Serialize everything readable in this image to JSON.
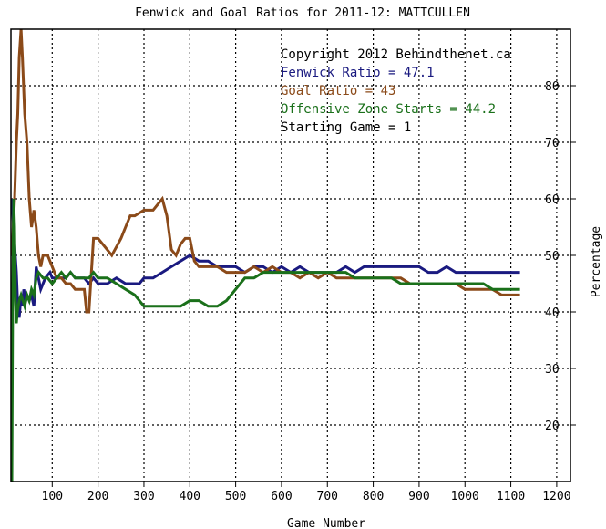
{
  "chart_data": {
    "type": "line",
    "title": "Fenwick and Goal Ratios for 2011-12: MATTCULLEN",
    "xlabel": "Game Number",
    "ylabel": "Percentage",
    "xlim": [
      10,
      1230
    ],
    "ylim": [
      10,
      90
    ],
    "xticks": [
      100,
      200,
      300,
      400,
      500,
      600,
      700,
      800,
      900,
      1000,
      1100,
      1200
    ],
    "yticks": [
      20,
      30,
      40,
      50,
      60,
      70,
      80
    ],
    "grid": true,
    "legend_position": "top-right",
    "annotations": [
      "Copyright 2012 Behindthenet.ca",
      "Starting Game = 1"
    ],
    "series": [
      {
        "name": "Fenwick Ratio = 47.1",
        "color": "#1a1a80",
        "x": [
          12,
          15,
          18,
          22,
          25,
          28,
          32,
          35,
          38,
          42,
          45,
          50,
          55,
          60,
          65,
          70,
          75,
          85,
          95,
          100,
          105,
          110,
          120,
          130,
          140,
          150,
          160,
          170,
          180,
          190,
          200,
          220,
          240,
          260,
          280,
          290,
          300,
          320,
          340,
          360,
          380,
          400,
          420,
          440,
          460,
          480,
          500,
          520,
          540,
          560,
          580,
          600,
          620,
          640,
          660,
          680,
          700,
          720,
          740,
          760,
          780,
          800,
          820,
          840,
          860,
          880,
          900,
          920,
          940,
          960,
          980,
          1000,
          1020,
          1040,
          1060,
          1080,
          1100,
          1120
        ],
        "y": [
          60,
          56,
          52,
          47,
          41,
          39,
          43,
          41,
          44,
          42,
          43,
          42,
          43,
          41,
          48,
          46,
          44,
          46,
          47,
          46,
          46,
          46,
          46,
          46,
          47,
          46,
          46,
          46,
          45,
          46,
          45,
          45,
          46,
          45,
          45,
          45,
          46,
          46,
          47,
          48,
          49,
          50,
          49,
          49,
          48,
          48,
          48,
          47,
          48,
          48,
          47,
          48,
          47,
          48,
          47,
          47,
          47,
          47,
          48,
          47,
          48,
          48,
          48,
          48,
          48,
          48,
          48,
          47,
          47,
          48,
          47,
          47,
          47,
          47,
          47,
          47,
          47,
          47
        ]
      },
      {
        "name": "Goal Ratio = 43",
        "color": "#8b4a19",
        "x": [
          12,
          15,
          18,
          22,
          25,
          28,
          32,
          35,
          40,
          45,
          50,
          55,
          60,
          65,
          70,
          75,
          80,
          90,
          100,
          110,
          120,
          130,
          140,
          150,
          160,
          170,
          175,
          180,
          190,
          200,
          230,
          250,
          260,
          270,
          280,
          300,
          320,
          330,
          340,
          350,
          360,
          370,
          380,
          390,
          400,
          410,
          420,
          440,
          460,
          480,
          500,
          520,
          540,
          560,
          580,
          600,
          620,
          640,
          660,
          680,
          700,
          720,
          740,
          760,
          780,
          800,
          820,
          840,
          860,
          880,
          900,
          920,
          940,
          960,
          980,
          1000,
          1020,
          1040,
          1060,
          1080,
          1100,
          1120
        ],
        "y": [
          50,
          55,
          60,
          70,
          75,
          85,
          90,
          85,
          75,
          70,
          60,
          55,
          58,
          55,
          50,
          48,
          50,
          50,
          48,
          46,
          46,
          45,
          45,
          44,
          44,
          44,
          40,
          40,
          53,
          53,
          50,
          53,
          55,
          57,
          57,
          58,
          58,
          59,
          60,
          57,
          51,
          50,
          52,
          53,
          53,
          49,
          48,
          48,
          48,
          47,
          47,
          47,
          48,
          47,
          48,
          47,
          47,
          46,
          47,
          46,
          47,
          46,
          46,
          46,
          46,
          46,
          46,
          46,
          46,
          45,
          45,
          45,
          45,
          45,
          45,
          44,
          44,
          44,
          44,
          43,
          43,
          43
        ]
      },
      {
        "name": "Offensive Zone Starts = 44.2",
        "color": "#1a701a",
        "x": [
          12,
          14,
          16,
          18,
          20,
          22,
          24,
          28,
          32,
          36,
          40,
          45,
          50,
          55,
          60,
          65,
          70,
          80,
          90,
          100,
          110,
          120,
          130,
          140,
          150,
          160,
          170,
          180,
          190,
          200,
          220,
          240,
          260,
          280,
          300,
          320,
          340,
          360,
          380,
          400,
          420,
          440,
          460,
          480,
          500,
          520,
          540,
          560,
          580,
          600,
          620,
          640,
          660,
          680,
          700,
          720,
          740,
          760,
          780,
          800,
          820,
          840,
          860,
          880,
          900,
          920,
          940,
          960,
          980,
          1000,
          1020,
          1040,
          1060,
          1080,
          1100,
          1120
        ],
        "y": [
          10,
          45,
          60,
          55,
          42,
          38,
          40,
          42,
          43,
          42,
          41,
          43,
          42,
          44,
          43,
          46,
          47,
          46,
          46,
          45,
          46,
          47,
          46,
          47,
          46,
          46,
          46,
          46,
          47,
          46,
          46,
          45,
          44,
          43,
          41,
          41,
          41,
          41,
          41,
          42,
          42,
          41,
          41,
          42,
          44,
          46,
          46,
          47,
          47,
          47,
          47,
          47,
          47,
          47,
          47,
          47,
          47,
          46,
          46,
          46,
          46,
          46,
          45,
          45,
          45,
          45,
          45,
          45,
          45,
          45,
          45,
          45,
          44,
          44,
          44,
          44
        ]
      }
    ]
  }
}
